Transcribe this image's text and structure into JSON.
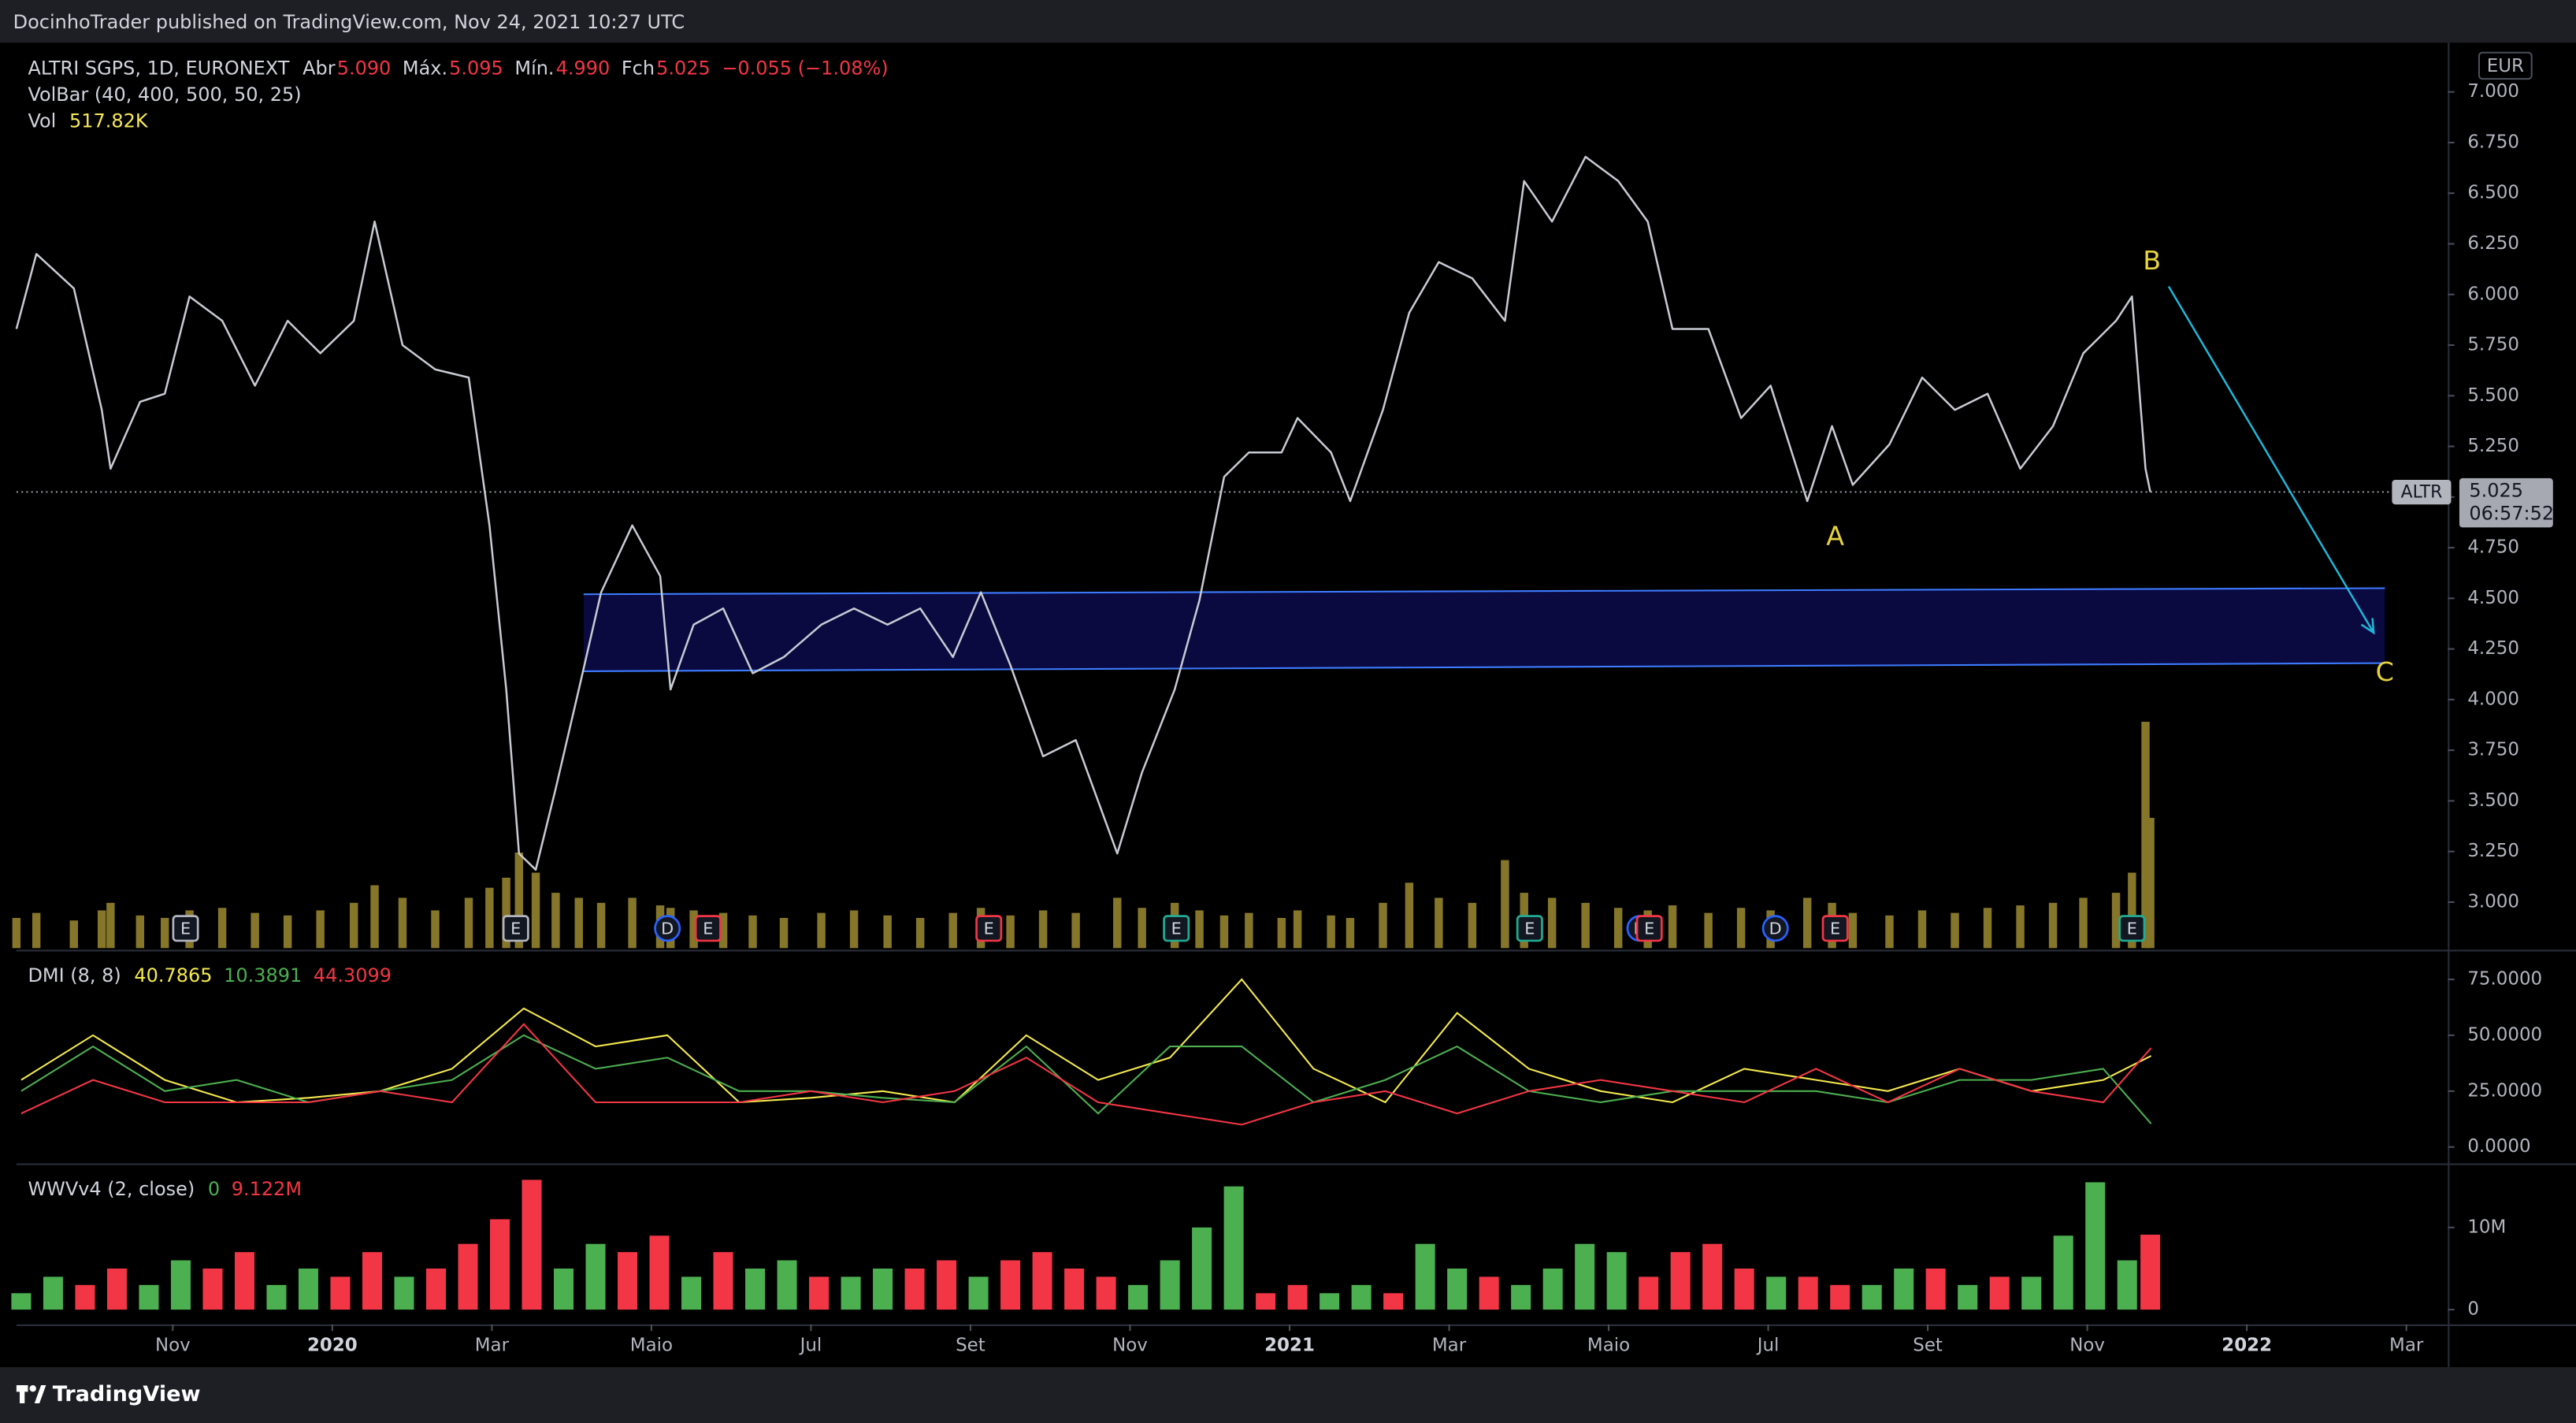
{
  "header": {
    "text": "DocinhoTrader published on TradingView.com, Nov 24, 2021 10:27 UTC"
  },
  "footer": {
    "brand": "TradingView"
  },
  "chart_data": [
    {
      "type": "line",
      "title": "ALTRI SGPS, 1D, EURONEXT",
      "ohlc_legend": [
        {
          "label": "Abr",
          "value": "5.090"
        },
        {
          "label": "Máx.",
          "value": "5.095"
        },
        {
          "label": "Mín.",
          "value": "4.990"
        },
        {
          "label": "Fch",
          "value": "5.025"
        }
      ],
      "change": "−0.055 (−1.08%)",
      "indicator": "VolBar (40, 400, 500, 50, 25)",
      "vol_legend": {
        "label": "Vol",
        "value": "517.82K"
      },
      "currency": "EUR",
      "symbol": "ALTR",
      "countdown": "06:57:52",
      "last_price": {
        "value": 5.025,
        "label": "5.025"
      },
      "color": "#c8cbd3",
      "xlim": [
        -1.96,
        28.52
      ],
      "xticks": [
        {
          "value": 0,
          "label": "Nov"
        },
        {
          "value": 2,
          "label": "2020"
        },
        {
          "value": 4,
          "label": "Mar"
        },
        {
          "value": 6,
          "label": "Maio"
        },
        {
          "value": 8,
          "label": "Jul"
        },
        {
          "value": 10,
          "label": "Set"
        },
        {
          "value": 12,
          "label": "Nov"
        },
        {
          "value": 14,
          "label": "2021"
        },
        {
          "value": 16,
          "label": "Mar"
        },
        {
          "value": 18,
          "label": "Maio"
        },
        {
          "value": 20,
          "label": "Jul"
        },
        {
          "value": 22,
          "label": "Set"
        },
        {
          "value": 24,
          "label": "Nov"
        },
        {
          "value": 26,
          "label": "2022"
        },
        {
          "value": 28,
          "label": "Mar"
        }
      ],
      "ylim": [
        2.773,
        7.243
      ],
      "yticks": [
        {
          "value": 3,
          "label": "3.000"
        },
        {
          "value": 3.25,
          "label": "3.250"
        },
        {
          "value": 3.5,
          "label": "3.500"
        },
        {
          "value": 3.75,
          "label": "3.750"
        },
        {
          "value": 4,
          "label": "4.000"
        },
        {
          "value": 4.25,
          "label": "4.250"
        },
        {
          "value": 4.5,
          "label": "4.500"
        },
        {
          "value": 4.75,
          "label": "4.750"
        },
        {
          "value": 5,
          "label": "5.000"
        },
        {
          "value": 5.25,
          "label": "5.250"
        },
        {
          "value": 5.5,
          "label": "5.500"
        },
        {
          "value": 5.75,
          "label": "5.750"
        },
        {
          "value": 6,
          "label": "6.000"
        },
        {
          "value": 6.25,
          "label": "6.250"
        },
        {
          "value": 6.5,
          "label": "6.500"
        },
        {
          "value": 6.75,
          "label": "6.750"
        },
        {
          "value": 7,
          "label": "7.000"
        }
      ],
      "x": [
        -1.96,
        -1.71,
        -1.24,
        -0.89,
        -0.78,
        -0.41,
        -0.1,
        0.21,
        0.62,
        1.03,
        1.44,
        1.85,
        2.27,
        2.53,
        2.88,
        3.29,
        3.71,
        3.97,
        4.18,
        4.34,
        4.55,
        4.8,
        5.09,
        5.37,
        5.76,
        6.11,
        6.24,
        6.53,
        6.9,
        7.27,
        7.66,
        8.13,
        8.54,
        8.96,
        9.37,
        9.78,
        10.13,
        10.5,
        10.91,
        11.32,
        11.84,
        12.15,
        12.56,
        12.87,
        13.18,
        13.49,
        13.9,
        14.1,
        14.52,
        14.76,
        15.17,
        15.5,
        15.87,
        16.29,
        16.7,
        16.94,
        17.29,
        17.71,
        18.12,
        18.49,
        18.8,
        19.25,
        19.66,
        20.03,
        20.49,
        20.8,
        21.06,
        21.52,
        21.93,
        22.34,
        22.75,
        23.16,
        23.57,
        23.95,
        24.36,
        24.56,
        24.73,
        24.79
      ],
      "values": [
        5.83,
        6.2,
        6.03,
        5.43,
        5.14,
        5.47,
        5.51,
        5.99,
        5.87,
        5.55,
        5.87,
        5.71,
        5.87,
        6.36,
        5.75,
        5.63,
        5.59,
        4.86,
        4.05,
        3.24,
        3.16,
        3.56,
        4.05,
        4.53,
        4.86,
        4.61,
        4.05,
        4.37,
        4.45,
        4.13,
        4.21,
        4.37,
        4.45,
        4.37,
        4.45,
        4.21,
        4.53,
        4.17,
        3.72,
        3.8,
        3.24,
        3.64,
        4.05,
        4.49,
        5.1,
        5.22,
        5.22,
        5.39,
        5.22,
        4.98,
        5.43,
        5.91,
        6.16,
        6.08,
        5.87,
        6.56,
        6.36,
        6.68,
        6.56,
        6.36,
        5.83,
        5.83,
        5.39,
        5.55,
        4.98,
        5.35,
        5.06,
        5.26,
        5.59,
        5.43,
        5.51,
        5.14,
        5.35,
        5.71,
        5.87,
        5.99,
        5.14,
        5.025
      ],
      "volume": {
        "color": "#86762a",
        "lim": [
          0,
          3600
        ],
        "values": [
          120,
          140,
          110,
          150,
          180,
          130,
          120,
          150,
          160,
          140,
          130,
          150,
          180,
          250,
          200,
          150,
          200,
          240,
          280,
          380,
          300,
          220,
          200,
          180,
          200,
          170,
          160,
          150,
          140,
          130,
          120,
          140,
          150,
          130,
          120,
          140,
          160,
          130,
          150,
          140,
          200,
          160,
          180,
          150,
          130,
          140,
          120,
          150,
          130,
          120,
          180,
          260,
          200,
          180,
          350,
          220,
          200,
          180,
          160,
          150,
          170,
          140,
          160,
          150,
          200,
          180,
          140,
          130,
          150,
          140,
          160,
          170,
          180,
          200,
          220,
          300,
          900,
          517.82
        ]
      },
      "markers": [
        {
          "x": 0.16,
          "label": "E",
          "color": "#b2b5be"
        },
        {
          "x": 4.3,
          "label": "E",
          "color": "#b2b5be"
        },
        {
          "x": 6.2,
          "label": "D",
          "color": "#2962ff"
        },
        {
          "x": 6.71,
          "label": "E",
          "color": "#f23645"
        },
        {
          "x": 10.23,
          "label": "E",
          "color": "#f23645"
        },
        {
          "x": 12.58,
          "label": "E",
          "color": "#22ab94"
        },
        {
          "x": 17.01,
          "label": "E",
          "color": "#22ab94"
        },
        {
          "x": 18.39,
          "label": "D",
          "color": "#2962ff"
        },
        {
          "x": 18.51,
          "label": "E",
          "color": "#f23645"
        },
        {
          "x": 20.09,
          "label": "D",
          "color": "#2962ff"
        },
        {
          "x": 20.84,
          "label": "E",
          "color": "#f23645"
        },
        {
          "x": 24.56,
          "label": "E",
          "color": "#22ab94"
        }
      ],
      "channel": {
        "x": [
          5.15,
          27.73
        ],
        "top": [
          4.52,
          4.55
        ],
        "bottom": [
          4.14,
          4.18
        ],
        "color": "#3d7bff",
        "fill": "#0a0a40"
      },
      "arrow": {
        "x": [
          25.02,
          27.59
        ],
        "y": [
          6.04,
          4.33
        ],
        "color": "#1fb6d9"
      },
      "wave_labels": [
        {
          "text": "A",
          "x": 20.84,
          "y": 4.8
        },
        {
          "text": "B",
          "x": 24.81,
          "y": 6.16
        },
        {
          "text": "C",
          "x": 27.73,
          "y": 4.13
        }
      ],
      "wave_color": "#e6d33e"
    },
    {
      "type": "line",
      "title": "DMI (8, 8)",
      "xlim": [
        -1.96,
        28.52
      ],
      "ylim": [
        -6.6,
        86.8
      ],
      "yticks": [
        {
          "value": 0,
          "label": "0.0000"
        },
        {
          "value": 25,
          "label": "25.0000"
        },
        {
          "value": 50,
          "label": "50.0000"
        },
        {
          "value": 75,
          "label": "75.0000"
        }
      ],
      "x": [
        -1.9,
        -1.0,
        -0.1,
        0.8,
        1.7,
        2.6,
        3.5,
        4.4,
        5.3,
        6.2,
        7.1,
        8.0,
        8.9,
        9.8,
        10.7,
        11.6,
        12.5,
        13.4,
        14.3,
        15.2,
        16.1,
        17.0,
        17.9,
        18.8,
        19.7,
        20.6,
        21.5,
        22.4,
        23.3,
        24.2,
        24.8
      ],
      "series": [
        {
          "color": "#f5e94e",
          "values": [
            30,
            50,
            30,
            20,
            22,
            25,
            35,
            62,
            45,
            50,
            20,
            22,
            25,
            20,
            50,
            30,
            40,
            75,
            35,
            20,
            60,
            35,
            25,
            20,
            35,
            30,
            25,
            35,
            25,
            30,
            40.7865
          ]
        },
        {
          "color": "#4caf50",
          "values": [
            25,
            45,
            25,
            30,
            20,
            25,
            30,
            50,
            35,
            40,
            25,
            25,
            22,
            20,
            45,
            15,
            45,
            45,
            20,
            30,
            45,
            25,
            20,
            25,
            25,
            25,
            20,
            30,
            30,
            35,
            10.3891
          ]
        },
        {
          "color": "#f23645",
          "values": [
            15,
            30,
            20,
            20,
            20,
            25,
            20,
            55,
            20,
            20,
            20,
            25,
            20,
            25,
            40,
            20,
            15,
            10,
            20,
            25,
            15,
            25,
            30,
            25,
            20,
            35,
            20,
            35,
            25,
            20,
            44.3099
          ]
        }
      ]
    },
    {
      "type": "bar",
      "title": "WWVv4 (2, close)",
      "legend": [
        "0",
        "9.122M"
      ],
      "legend_colors": [
        "#4caf50",
        "#f23645"
      ],
      "xlim": [
        -1.96,
        28.52
      ],
      "ylim": [
        -1.6,
        17.4
      ],
      "yticks": [
        0,
        {
          "value": 10,
          "label": "10M"
        }
      ],
      "x": [
        -1.9,
        -1.5,
        -1.1,
        -0.7,
        -0.3,
        0.1,
        0.5,
        0.9,
        1.3,
        1.7,
        2.1,
        2.5,
        2.9,
        3.3,
        3.7,
        4.1,
        4.5,
        4.9,
        5.3,
        5.7,
        6.1,
        6.5,
        6.9,
        7.3,
        7.7,
        8.1,
        8.5,
        8.9,
        9.3,
        9.7,
        10.1,
        10.5,
        10.9,
        11.3,
        11.7,
        12.1,
        12.5,
        12.9,
        13.3,
        13.7,
        14.1,
        14.5,
        14.9,
        15.3,
        15.7,
        16.1,
        16.5,
        16.9,
        17.3,
        17.7,
        18.1,
        18.5,
        18.9,
        19.3,
        19.7,
        20.1,
        20.5,
        20.9,
        21.3,
        21.7,
        22.1,
        22.5,
        22.9,
        23.3,
        23.7,
        24.1,
        24.5,
        24.79
      ],
      "values": [
        2,
        4,
        3,
        5,
        3,
        6,
        5,
        7,
        3,
        5,
        4,
        7,
        4,
        5,
        8,
        11,
        15.8,
        5,
        8,
        7,
        9,
        4,
        7,
        5,
        6,
        4,
        4,
        5,
        5,
        6,
        4,
        6,
        7,
        5,
        4,
        3,
        6,
        10,
        15,
        2,
        3,
        2,
        3,
        2,
        8,
        5,
        4,
        3,
        5,
        8,
        7,
        4,
        7,
        8,
        5,
        4,
        4,
        3,
        3,
        5,
        5,
        3,
        4,
        4,
        9,
        15.5,
        6,
        9.122
      ],
      "colors": [
        "#4caf50",
        "#4caf50",
        "#f23645",
        "#f23645",
        "#4caf50",
        "#4caf50",
        "#f23645",
        "#f23645",
        "#4caf50",
        "#4caf50",
        "#f23645",
        "#f23645",
        "#4caf50",
        "#f23645",
        "#f23645",
        "#f23645",
        "#f23645",
        "#4caf50",
        "#4caf50",
        "#f23645",
        "#f23645",
        "#4caf50",
        "#f23645",
        "#4caf50",
        "#4caf50",
        "#f23645",
        "#4caf50",
        "#4caf50",
        "#f23645",
        "#f23645",
        "#4caf50",
        "#f23645",
        "#f23645",
        "#f23645",
        "#f23645",
        "#4caf50",
        "#4caf50",
        "#4caf50",
        "#4caf50",
        "#f23645",
        "#f23645",
        "#4caf50",
        "#4caf50",
        "#f23645",
        "#4caf50",
        "#4caf50",
        "#f23645",
        "#4caf50",
        "#4caf50",
        "#4caf50",
        "#4caf50",
        "#f23645",
        "#f23645",
        "#f23645",
        "#f23645",
        "#4caf50",
        "#f23645",
        "#f23645",
        "#4caf50",
        "#4caf50",
        "#f23645",
        "#4caf50",
        "#f23645",
        "#4caf50",
        "#4caf50",
        "#4caf50",
        "#4caf50",
        "#f23645"
      ]
    }
  ]
}
